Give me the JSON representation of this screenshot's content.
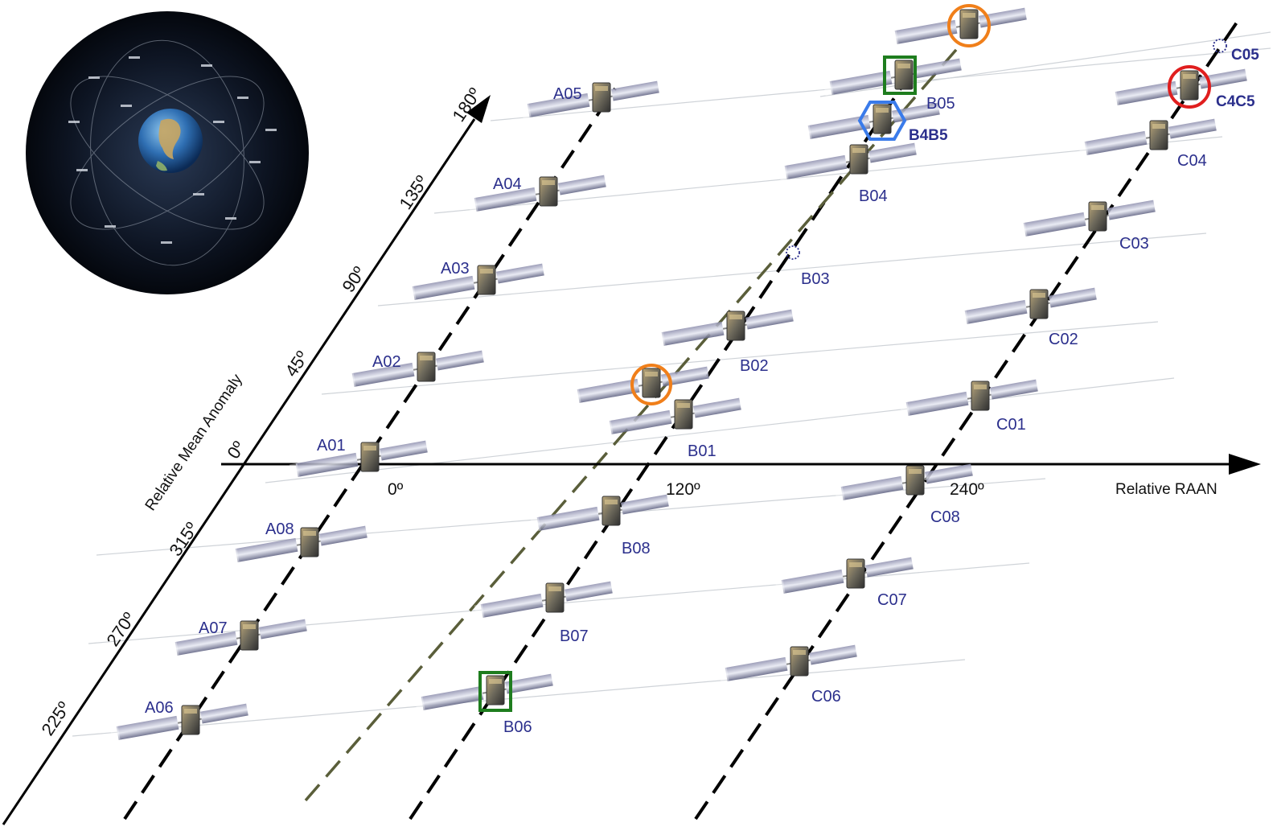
{
  "axes": {
    "x_title": "Relative RAAN",
    "y_title": "Relative Mean Anomaly",
    "x_ticks": [
      "0º",
      "120º",
      "240º"
    ],
    "y_ticks": [
      "0º",
      "45º",
      "90º",
      "135º",
      "180º",
      "315º",
      "270º",
      "225º"
    ]
  },
  "planes": {
    "A": {
      "satellites": [
        {
          "id": "A01",
          "label": "A01"
        },
        {
          "id": "A02",
          "label": "A02"
        },
        {
          "id": "A03",
          "label": "A03"
        },
        {
          "id": "A04",
          "label": "A04"
        },
        {
          "id": "A05",
          "label": "A05"
        },
        {
          "id": "A06",
          "label": "A06"
        },
        {
          "id": "A07",
          "label": "A07"
        },
        {
          "id": "A08",
          "label": "A08"
        }
      ]
    },
    "B": {
      "satellites": [
        {
          "id": "B01",
          "label": "B01"
        },
        {
          "id": "B02",
          "label": "B02"
        },
        {
          "id": "B03",
          "label": "B03"
        },
        {
          "id": "B04",
          "label": "B04"
        },
        {
          "id": "B05",
          "label": "B05"
        },
        {
          "id": "B4B5",
          "label": "B4B5"
        },
        {
          "id": "B06",
          "label": "B06"
        },
        {
          "id": "B07",
          "label": "B07"
        },
        {
          "id": "B08",
          "label": "B08"
        }
      ]
    },
    "C": {
      "satellites": [
        {
          "id": "C01",
          "label": "C01"
        },
        {
          "id": "C02",
          "label": "C02"
        },
        {
          "id": "C03",
          "label": "C03"
        },
        {
          "id": "C04",
          "label": "C04"
        },
        {
          "id": "C05",
          "label": "C05"
        },
        {
          "id": "C4C5",
          "label": "C4C5"
        },
        {
          "id": "C06",
          "label": "C06"
        },
        {
          "id": "C07",
          "label": "C07"
        },
        {
          "id": "C08",
          "label": "C08"
        }
      ]
    }
  },
  "colors": {
    "label": "#2b2f8c",
    "orange_marker": "#f07f1a",
    "green_marker": "#1e7d1e",
    "blue_marker": "#3a7bea",
    "red_marker": "#e01e1e",
    "olive_line": "#5a5e3a",
    "axis": "#000000"
  },
  "icons": {
    "satellite": "galileo-satellite-icon",
    "earth": "earth-constellation-icon"
  }
}
